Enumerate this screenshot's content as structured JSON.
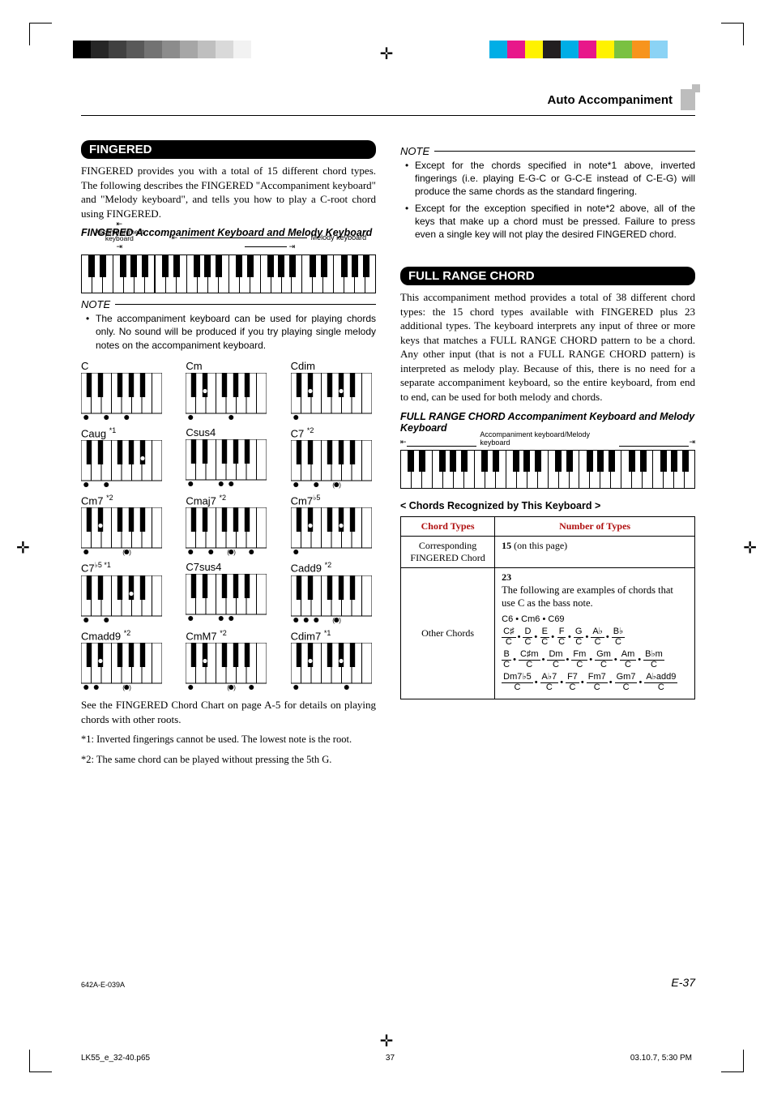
{
  "print": {
    "gray_bar": [
      "#000000",
      "#262626",
      "#404040",
      "#595959",
      "#737373",
      "#8c8c8c",
      "#a6a6a6",
      "#bfbfbf",
      "#d9d9d9",
      "#f2f2f2"
    ],
    "color_bar": [
      "#00aee6",
      "#e8178a",
      "#fff200",
      "#231f20",
      "#00aee6",
      "#e8178a",
      "#fff200",
      "#7ac141",
      "#f7941d",
      "#8bd3f5"
    ]
  },
  "header": {
    "title": "Auto Accompaniment"
  },
  "fingered": {
    "pill": "FINGERED",
    "intro": "FINGERED provides you with a total of 15 different chord types. The following describes the FINGERED \"Accompaniment keyboard\" and \"Melody keyboard\", and tells you how to play a C-root chord using FINGERED.",
    "sub": "FINGERED Accompaniment Keyboard and Melody Keyboard",
    "kbd_labels": {
      "left": "Accompaniment keyboard",
      "right": "Melody keyboard"
    },
    "note_label": "NOTE",
    "note_items": [
      "The accompaniment keyboard can be used for playing chords only. No sound will be produced if you try playing single melody notes on the accompaniment keyboard."
    ],
    "footnote_ref": "See the FINGERED Chord Chart on page A-5 for details on playing chords with other roots.",
    "fn1": "*1: Inverted fingerings cannot be used. The lowest note is the root.",
    "fn2": "*2: The same chord can be played without pressing the 5th G.",
    "chords": [
      {
        "name": "C",
        "sup": "",
        "dots_w": [
          0,
          2,
          4
        ],
        "dots_b": []
      },
      {
        "name": "Cm",
        "sup": "",
        "dots_w": [
          0,
          4
        ],
        "dots_b": [
          1
        ]
      },
      {
        "name": "Cdim",
        "sup": "",
        "dots_w": [
          0
        ],
        "dots_b": [
          1,
          3
        ]
      },
      {
        "name": "Caug ",
        "sup": "*1",
        "dots_w": [
          0,
          2
        ],
        "dots_b": [
          4
        ]
      },
      {
        "name": "Csus4",
        "sup": "",
        "dots_w": [
          0,
          3,
          4
        ],
        "dots_b": []
      },
      {
        "name": "C7 ",
        "sup": "*2",
        "dots_w": [
          0,
          2,
          4
        ],
        "dots_b": [
          6
        ],
        "opt_w": [
          4
        ]
      },
      {
        "name": "Cm7 ",
        "sup": "*2",
        "dots_w": [
          0,
          4
        ],
        "dots_b": [
          1,
          6
        ],
        "opt_w": [
          4
        ]
      },
      {
        "name": "Cmaj7 ",
        "sup": "*2",
        "dots_w": [
          0,
          2,
          4,
          6
        ],
        "dots_b": [],
        "opt_w": [
          4
        ]
      },
      {
        "name": "Cm7",
        "sup": "♭5",
        "dots_w": [
          0
        ],
        "dots_b": [
          1,
          3,
          6
        ]
      },
      {
        "name": "C7",
        "sup": "♭5 *1",
        "dots_w": [
          0,
          2
        ],
        "dots_b": [
          3,
          6
        ]
      },
      {
        "name": "C7sus4",
        "sup": "",
        "dots_w": [
          0,
          3,
          4
        ],
        "dots_b": [
          6
        ]
      },
      {
        "name": "Cadd9 ",
        "sup": "*2",
        "dots_w": [
          0,
          1,
          2,
          4
        ],
        "dots_b": [],
        "opt_w": [
          4
        ]
      },
      {
        "name": "Cmadd9 ",
        "sup": "*2",
        "dots_w": [
          0,
          1,
          4
        ],
        "dots_b": [
          1
        ],
        "opt_w": [
          4
        ]
      },
      {
        "name": "CmM7 ",
        "sup": "*2",
        "dots_w": [
          0,
          4,
          6
        ],
        "dots_b": [
          1
        ],
        "opt_w": [
          4
        ]
      },
      {
        "name": "Cdim7 ",
        "sup": "*1",
        "dots_w": [
          0,
          5
        ],
        "dots_b": [
          1,
          3
        ]
      }
    ],
    "mini_kbd": {
      "white_keys": 8,
      "black_positions": [
        0.1,
        0.24,
        0.48,
        0.62,
        0.76
      ]
    }
  },
  "right_notes": {
    "label": "NOTE",
    "items": [
      "Except for the chords specified in note*1 above, inverted fingerings (i.e. playing E-G-C or G-C-E instead of C-E-G) will produce the same chords as the standard fingering.",
      "Except for the exception specified in note*2 above, all of the keys that make up a chord must be pressed. Failure to press even a single key will not play the desired FINGERED chord."
    ]
  },
  "full_range": {
    "pill": "FULL RANGE CHORD",
    "intro": "This accompaniment method provides a total of 38 different chord types: the 15 chord types available with FINGERED plus 23 additional types. The keyboard interprets any input of three or more keys that matches a FULL RANGE CHORD pattern to be a chord. Any other input (that is not a FULL RANGE CHORD pattern) is interpreted as melody play. Because of this, there is no need for a separate accompaniment keyboard, so the entire keyboard, from end to end, can be used for both melody and chords.",
    "sub": "FULL RANGE CHORD Accompaniment Keyboard and Melody Keyboard",
    "kbd_label": "Accompaniment keyboard/Melody keyboard",
    "angle_head": "< Chords Recognized by This Keyboard >",
    "table": {
      "h1": "Chord Types",
      "h2": "Number of Types",
      "r1c1": "Corresponding FINGERED Chord",
      "r1c2_strong": "15",
      "r1c2_rest": " (on this page)",
      "r2c1": "Other Chords",
      "r2c2_strong": "23",
      "r2c2_line": "The following are examples of chords that use C as the bass note.",
      "simple_row": "C6  •  Cm6  •  C69",
      "frac_row1": [
        [
          "C♯",
          "C"
        ],
        [
          "D",
          "C"
        ],
        [
          "E",
          "C"
        ],
        [
          "F",
          "C"
        ],
        [
          "G",
          "C"
        ],
        [
          "A♭",
          "C"
        ],
        [
          "B♭",
          "C"
        ]
      ],
      "frac_row2": [
        [
          "B",
          "C"
        ],
        [
          "C♯m",
          "C"
        ],
        [
          "Dm",
          "C"
        ],
        [
          "Fm",
          "C"
        ],
        [
          "Gm",
          "C"
        ],
        [
          "Am",
          "C"
        ],
        [
          "B♭m",
          "C"
        ]
      ],
      "frac_row3": [
        [
          "Dm7♭5",
          "C"
        ],
        [
          "A♭7",
          "C"
        ],
        [
          "F7",
          "C"
        ],
        [
          "Fm7",
          "C"
        ],
        [
          "Gm7",
          "C"
        ],
        [
          "A♭add9",
          "C"
        ]
      ]
    }
  },
  "footer": {
    "code": "642A-E-039A",
    "page": "E-37",
    "meta_left": "LK55_e_32-40.p65",
    "meta_mid": "37",
    "meta_right": "03.10.7, 5:30 PM"
  },
  "wide_kbd": {
    "white_keys": 28,
    "split_after": 7,
    "black_pattern_oct": [
      0.7,
      1.75,
      3.7,
      4.72,
      5.75
    ]
  }
}
